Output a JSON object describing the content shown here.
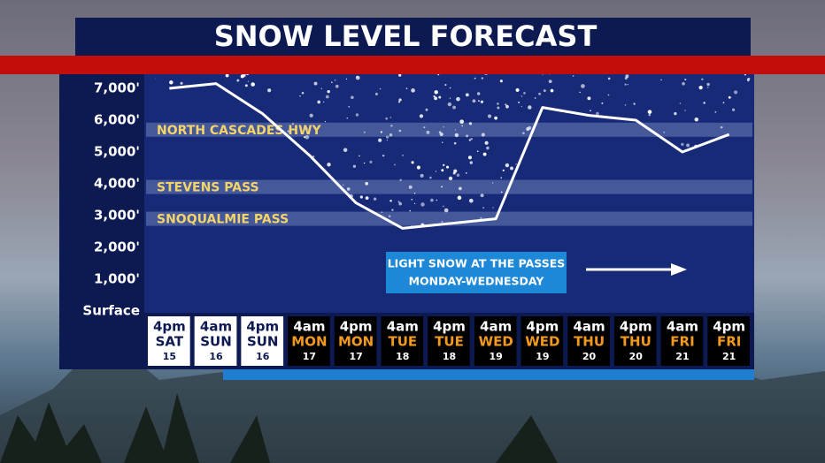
{
  "chart_data": {
    "type": "line",
    "title": "SNOW LEVEL FORECAST",
    "categories": [
      [
        "4pm",
        "SAT",
        "15"
      ],
      [
        "4am",
        "SUN",
        "16"
      ],
      [
        "4pm",
        "SUN",
        "16"
      ],
      [
        "4am",
        "MON",
        "17"
      ],
      [
        "4pm",
        "MON",
        "17"
      ],
      [
        "4am",
        "TUE",
        "18"
      ],
      [
        "4pm",
        "TUE",
        "18"
      ],
      [
        "4am",
        "WED",
        "19"
      ],
      [
        "4pm",
        "WED",
        "19"
      ],
      [
        "4am",
        "THU",
        "20"
      ],
      [
        "4pm",
        "THU",
        "20"
      ],
      [
        "4am",
        "FRI",
        "21"
      ],
      [
        "4pm",
        "FRI",
        "21"
      ]
    ],
    "values": [
      7000,
      7150,
      6200,
      4900,
      3400,
      2600,
      2750,
      2900,
      6400,
      6150,
      6000,
      5000,
      5550
    ],
    "color": "#ffffff",
    "ylim": [
      0,
      7500
    ],
    "yticks": [
      {
        "value": 0,
        "label": "Surface"
      },
      {
        "value": 1000,
        "label": "1,000'"
      },
      {
        "value": 2000,
        "label": "2,000'"
      },
      {
        "value": 3000,
        "label": "3,000'"
      },
      {
        "value": 4000,
        "label": "4,000'"
      },
      {
        "value": 5000,
        "label": "5,000'"
      },
      {
        "value": 6000,
        "label": "6,000'"
      },
      {
        "value": 7000,
        "label": "7,000'"
      }
    ],
    "reference_lines": [
      {
        "label": "NORTH CASCADES HWY",
        "value": 5700
      },
      {
        "label": "STEVENS PASS",
        "value": 3900
      },
      {
        "label": "SNOQUALMIE PASS",
        "value": 2900
      }
    ],
    "annotation": [
      "LIGHT SNOW AT THE PASSES",
      "MONDAY-WEDNESDAY"
    ]
  }
}
